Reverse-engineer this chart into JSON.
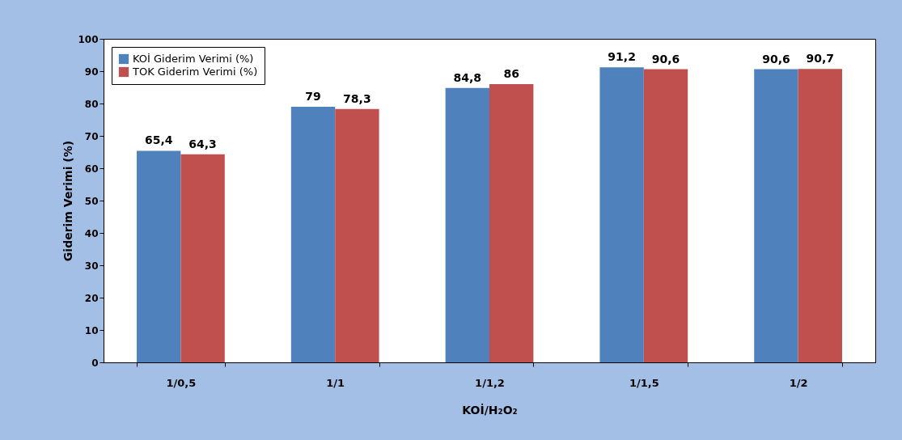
{
  "chart_data": {
    "type": "bar",
    "xlabel": "KOİ/H₂O₂",
    "ylabel": "Giderim Verimi (%)",
    "categories": [
      "1/0,5",
      "1/1",
      "1/1,2",
      "1/1,5",
      "1/2"
    ],
    "series": [
      {
        "name": "KOİ Giderim Verimi (%)",
        "color": "#4f81bd",
        "values": [
          65.4,
          79,
          84.8,
          91.2,
          90.6
        ],
        "value_labels": [
          "65,4",
          "79",
          "84,8",
          "91,2",
          "90,6"
        ]
      },
      {
        "name": "TOK Giderim Verimi (%)",
        "color": "#c0504d",
        "values": [
          64.3,
          78.3,
          86,
          90.6,
          90.7
        ],
        "value_labels": [
          "64,3",
          "78,3",
          "86",
          "90,6",
          "90,7"
        ]
      }
    ],
    "ylim": [
      0,
      100
    ],
    "yticks": [
      0,
      10,
      20,
      30,
      40,
      50,
      60,
      70,
      80,
      90,
      100
    ],
    "grid": false,
    "legend": "top left"
  }
}
